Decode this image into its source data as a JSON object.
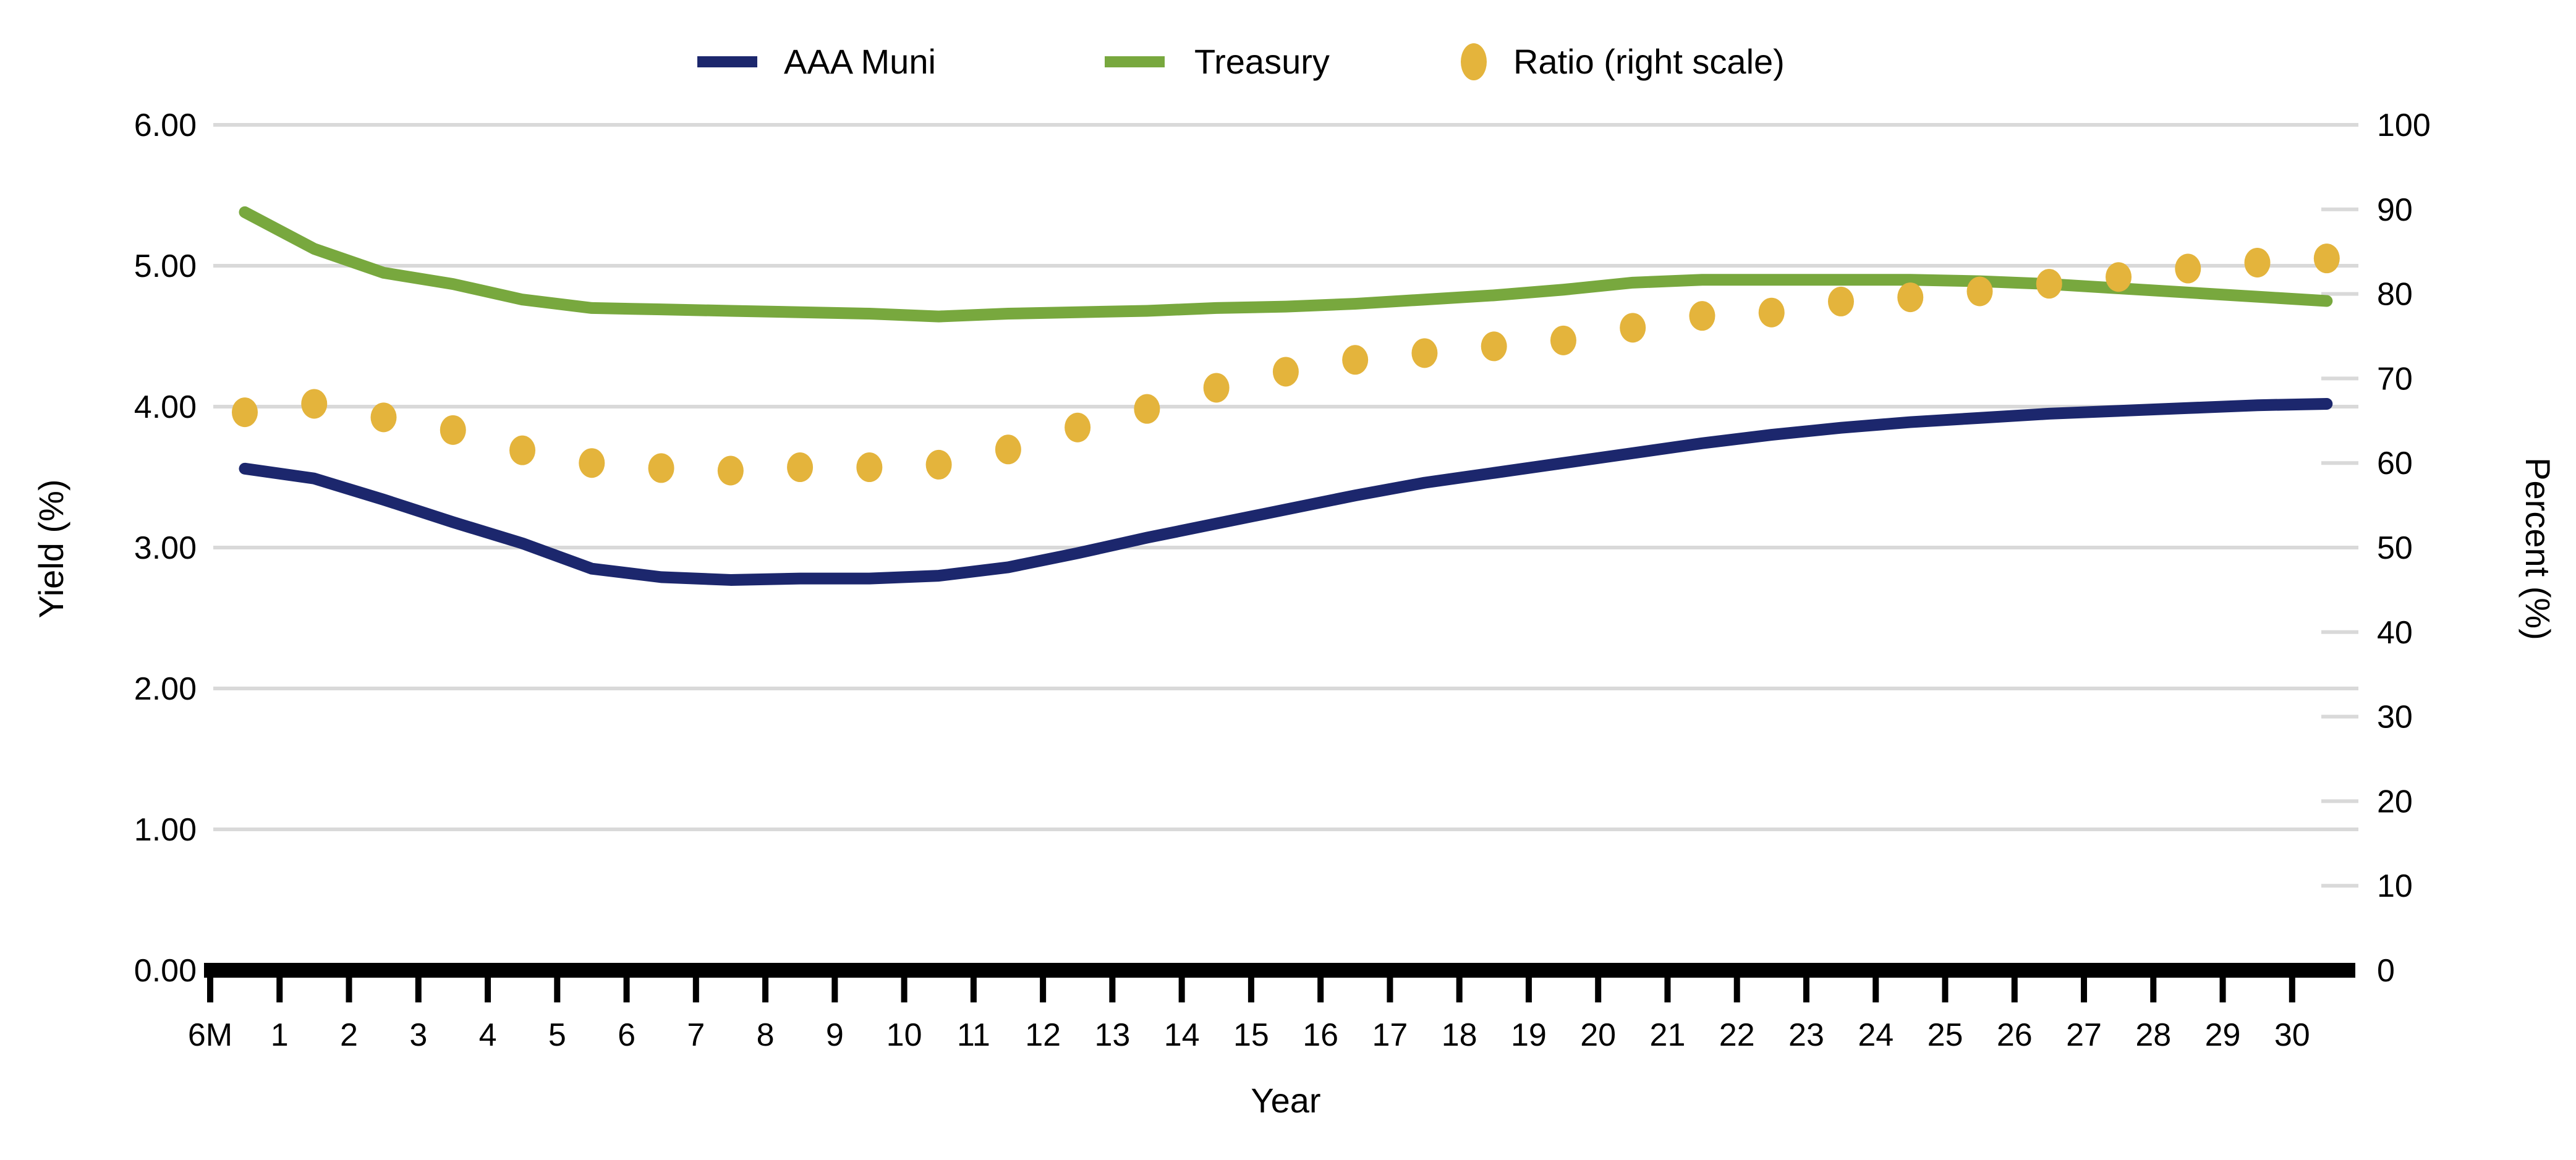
{
  "chart_data": {
    "type": "line",
    "title": "",
    "categories": [
      "6M",
      "1",
      "2",
      "3",
      "4",
      "5",
      "6",
      "7",
      "8",
      "9",
      "10",
      "11",
      "12",
      "13",
      "14",
      "15",
      "16",
      "17",
      "18",
      "19",
      "20",
      "21",
      "22",
      "23",
      "24",
      "25",
      "26",
      "27",
      "28",
      "29",
      "30"
    ],
    "series": [
      {
        "name": "AAA Muni",
        "type": "line",
        "axis": "left",
        "color": "#1c276d",
        "values": [
          3.56,
          3.49,
          3.34,
          3.18,
          3.03,
          2.85,
          2.79,
          2.77,
          2.78,
          2.78,
          2.8,
          2.86,
          2.96,
          3.07,
          3.17,
          3.27,
          3.37,
          3.46,
          3.53,
          3.6,
          3.67,
          3.74,
          3.8,
          3.85,
          3.89,
          3.92,
          3.95,
          3.97,
          3.99,
          4.01,
          4.02
        ]
      },
      {
        "name": "Treasury",
        "type": "line",
        "axis": "left",
        "color": "#78a83e",
        "values": [
          5.38,
          5.12,
          4.95,
          4.87,
          4.76,
          4.7,
          4.69,
          4.68,
          4.67,
          4.66,
          4.64,
          4.66,
          4.67,
          4.68,
          4.7,
          4.71,
          4.73,
          4.76,
          4.79,
          4.83,
          4.88,
          4.9,
          4.9,
          4.9,
          4.9,
          4.89,
          4.87,
          4.84,
          4.81,
          4.78,
          4.75
        ]
      },
      {
        "name": "Ratio (right scale)",
        "type": "scatter",
        "axis": "right",
        "color": "#e4b43c",
        "values": [
          66.0,
          67.0,
          65.4,
          63.9,
          61.5,
          60.0,
          59.4,
          59.1,
          59.5,
          59.5,
          59.8,
          61.6,
          64.2,
          66.4,
          68.9,
          70.8,
          72.2,
          73.0,
          73.8,
          74.5,
          76.0,
          77.4,
          77.8,
          79.1,
          79.6,
          80.3,
          81.2,
          82.0,
          83.0,
          83.7,
          84.2
        ]
      }
    ],
    "left_axis": {
      "label": "Yield (%)",
      "min": 0,
      "max": 6,
      "step": 1,
      "ticks": [
        "0.00",
        "1.00",
        "2.00",
        "3.00",
        "4.00",
        "5.00",
        "6.00"
      ]
    },
    "right_axis": {
      "label": "Percent (%)",
      "min": 0,
      "max": 100,
      "step": 10,
      "ticks": [
        "0",
        "10",
        "20",
        "30",
        "40",
        "50",
        "60",
        "70",
        "80",
        "90",
        "100"
      ]
    },
    "x_axis": {
      "label": "Year"
    },
    "legend_position": "top",
    "grid": "horizontal",
    "colors": {
      "gridline": "#d9d9d9",
      "axis": "#000000",
      "background": "#ffffff"
    }
  }
}
